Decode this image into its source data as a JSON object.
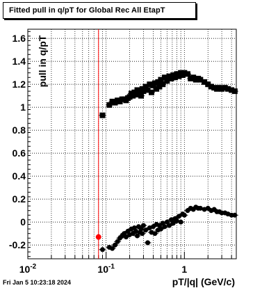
{
  "chart_data": {
    "type": "scatter",
    "title": "Fitted pull in q/pT for Global Rec All EtapT",
    "xlabel": "pT/|q| (GeV/c)",
    "ylabel": "pull in q/pT",
    "xscale": "log",
    "xlim": [
      0.01,
      4.6
    ],
    "ylim": [
      -0.32,
      1.68
    ],
    "grid": true,
    "x_tick_labels": [
      "10^-2",
      "10^-1",
      "1"
    ],
    "y_ticks": [
      -0.2,
      0,
      0.2,
      0.4,
      0.6,
      0.8,
      1,
      1.2,
      1.4,
      1.6
    ],
    "y_tick_labels": [
      "-0.2",
      "0",
      "0.2",
      "0.4",
      "0.6",
      "0.8",
      "1",
      "1.2",
      "1.4",
      "1.6"
    ],
    "vertical_line": {
      "x": 0.08,
      "color": "#ff0000"
    },
    "highlight_point": {
      "x": 0.08,
      "y": -0.13,
      "color": "#ff0000"
    },
    "series": [
      {
        "marker": "square",
        "color": "#000000",
        "x": [
          0.09,
          0.11,
          0.12,
          0.13,
          0.14,
          0.15,
          0.16,
          0.17,
          0.18,
          0.19,
          0.2,
          0.21,
          0.22,
          0.23,
          0.24,
          0.25,
          0.26,
          0.27,
          0.28,
          0.29,
          0.3,
          0.32,
          0.34,
          0.36,
          0.38,
          0.4,
          0.42,
          0.44,
          0.46,
          0.48,
          0.5,
          0.53,
          0.56,
          0.6,
          0.64,
          0.68,
          0.72,
          0.76,
          0.8,
          0.85,
          0.9,
          0.95,
          1.0,
          1.1,
          1.2,
          1.3,
          1.4,
          1.5,
          1.6,
          1.8,
          2.0,
          2.2,
          2.4,
          2.6,
          2.8,
          3.0,
          3.3,
          3.6,
          4.0,
          4.4
        ],
        "y": [
          0.93,
          1.02,
          1.05,
          1.04,
          1.06,
          1.05,
          1.07,
          1.07,
          1.06,
          1.08,
          1.09,
          1.12,
          1.1,
          1.13,
          1.11,
          1.15,
          1.12,
          1.14,
          1.1,
          1.16,
          1.14,
          1.18,
          1.15,
          1.2,
          1.13,
          1.19,
          1.21,
          1.16,
          1.22,
          1.18,
          1.24,
          1.2,
          1.26,
          1.23,
          1.27,
          1.25,
          1.28,
          1.26,
          1.29,
          1.27,
          1.3,
          1.28,
          1.3,
          1.29,
          1.25,
          1.26,
          1.24,
          1.25,
          1.24,
          1.22,
          1.2,
          1.18,
          1.17,
          1.16,
          1.17,
          1.16,
          1.17,
          1.16,
          1.15,
          1.14
        ]
      },
      {
        "marker": "circle",
        "color": "#000000",
        "x": [
          0.09,
          0.11,
          0.12,
          0.13,
          0.14,
          0.15,
          0.16,
          0.17,
          0.18,
          0.19,
          0.2,
          0.21,
          0.22,
          0.23,
          0.24,
          0.25,
          0.26,
          0.27,
          0.28,
          0.29,
          0.3,
          0.32,
          0.34,
          0.36,
          0.38,
          0.4,
          0.42,
          0.44,
          0.46,
          0.48,
          0.5,
          0.53,
          0.56,
          0.6,
          0.64,
          0.68,
          0.72,
          0.76,
          0.8,
          0.85,
          0.9,
          0.95,
          1.0,
          1.1,
          1.2,
          1.3,
          1.4,
          1.5,
          1.6,
          1.8,
          2.0,
          2.2,
          2.4,
          2.6,
          2.8,
          3.0,
          3.3,
          3.6,
          4.0,
          4.4
        ],
        "y": [
          -0.24,
          -0.22,
          -0.23,
          -0.2,
          -0.17,
          -0.14,
          -0.12,
          -0.1,
          -0.13,
          -0.08,
          -0.11,
          -0.06,
          -0.1,
          -0.05,
          -0.08,
          -0.12,
          -0.04,
          -0.09,
          -0.06,
          -0.1,
          -0.03,
          -0.07,
          -0.18,
          -0.05,
          -0.09,
          -0.04,
          -0.1,
          -0.02,
          -0.07,
          -0.03,
          -0.06,
          -0.01,
          -0.04,
          0.0,
          -0.03,
          0.02,
          -0.01,
          0.03,
          0.01,
          0.05,
          0.0,
          0.07,
          0.06,
          0.1,
          0.12,
          0.11,
          0.13,
          0.12,
          0.12,
          0.11,
          0.12,
          0.1,
          0.11,
          0.09,
          0.09,
          0.08,
          0.08,
          0.07,
          0.06,
          0.06
        ]
      }
    ]
  },
  "datestamp": "Fri Jan  5 10:23:18 2024"
}
